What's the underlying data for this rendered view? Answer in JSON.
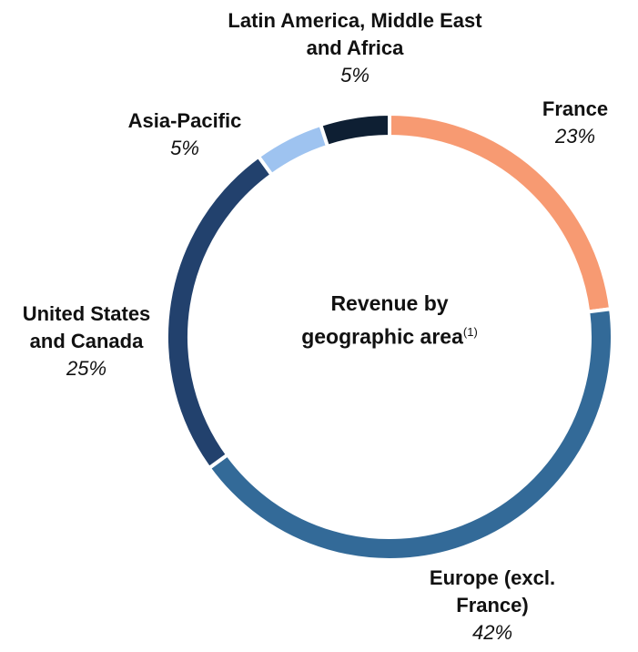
{
  "chart_data": {
    "type": "pie",
    "donut": true,
    "title": "Revenue by geographic area",
    "title_note": "(1)",
    "categories": [
      "France",
      "Europe (excl. France)",
      "United States and Canada",
      "Asia-Pacific",
      "Latin America, Middle East and Africa"
    ],
    "values": [
      23,
      42,
      25,
      5,
      5
    ],
    "value_labels": [
      "23%",
      "42%",
      "25%",
      "5%",
      "5%"
    ],
    "colors": [
      "#f79a72",
      "#336a98",
      "#22416d",
      "#9ec3f0",
      "#0e1f33"
    ]
  }
}
